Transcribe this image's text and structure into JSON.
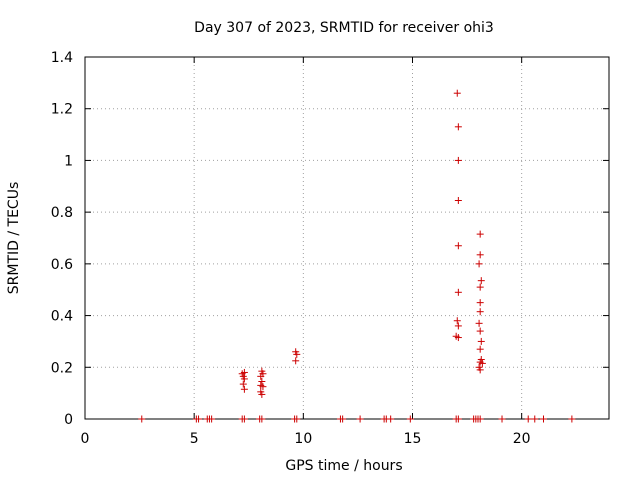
{
  "chart_data": {
    "type": "scatter",
    "title": "Day 307 of 2023, SRMTID for receiver ohi3",
    "xlabel": "GPS time / hours",
    "ylabel": "SRMTID / TECUs",
    "xlim": [
      0,
      24
    ],
    "ylim": [
      0,
      1.4
    ],
    "grid": true,
    "marker": "+",
    "color": "#cc0000",
    "x_ticks": [
      0,
      5,
      10,
      15,
      20
    ],
    "x_tick_labels": [
      "0",
      "5",
      "10",
      "15",
      "20"
    ],
    "y_ticks": [
      0,
      0.2,
      0.4,
      0.6,
      0.8,
      1.0,
      1.2,
      1.4
    ],
    "y_tick_labels": [
      "0",
      "0.2",
      "0.4",
      "0.6",
      "0.8",
      "1",
      "1.2",
      "1.4"
    ],
    "series": [
      {
        "name": "ohi3",
        "points": [
          [
            2.6,
            0
          ],
          [
            5.1,
            0
          ],
          [
            5.2,
            0
          ],
          [
            5.6,
            0
          ],
          [
            5.7,
            0
          ],
          [
            5.8,
            0
          ],
          [
            7.2,
            0
          ],
          [
            7.3,
            0
          ],
          [
            8.0,
            0
          ],
          [
            8.1,
            0
          ],
          [
            9.6,
            0
          ],
          [
            9.7,
            0
          ],
          [
            11.7,
            0
          ],
          [
            11.8,
            0
          ],
          [
            12.6,
            0
          ],
          [
            13.7,
            0
          ],
          [
            13.8,
            0
          ],
          [
            14.0,
            0
          ],
          [
            14.9,
            0
          ],
          [
            17.0,
            0
          ],
          [
            17.1,
            0
          ],
          [
            17.8,
            0
          ],
          [
            17.9,
            0
          ],
          [
            18.0,
            0
          ],
          [
            18.1,
            0
          ],
          [
            19.1,
            0
          ],
          [
            20.3,
            0
          ],
          [
            20.6,
            0
          ],
          [
            21.0,
            0
          ],
          [
            22.3,
            0
          ],
          [
            7.2,
            0.175
          ],
          [
            7.25,
            0.165
          ],
          [
            7.3,
            0.18
          ],
          [
            7.3,
            0.155
          ],
          [
            7.25,
            0.135
          ],
          [
            7.3,
            0.115
          ],
          [
            8.1,
            0.185
          ],
          [
            8.15,
            0.175
          ],
          [
            8.05,
            0.165
          ],
          [
            8.1,
            0.145
          ],
          [
            8.05,
            0.13
          ],
          [
            8.15,
            0.125
          ],
          [
            8.05,
            0.105
          ],
          [
            8.1,
            0.095
          ],
          [
            9.65,
            0.26
          ],
          [
            9.7,
            0.25
          ],
          [
            9.65,
            0.225
          ],
          [
            17.05,
            1.26
          ],
          [
            17.1,
            1.13
          ],
          [
            17.1,
            1.0
          ],
          [
            17.1,
            0.845
          ],
          [
            17.1,
            0.67
          ],
          [
            17.1,
            0.49
          ],
          [
            17.05,
            0.38
          ],
          [
            17.1,
            0.36
          ],
          [
            17.0,
            0.32
          ],
          [
            17.1,
            0.315
          ],
          [
            18.1,
            0.715
          ],
          [
            18.1,
            0.635
          ],
          [
            18.05,
            0.6
          ],
          [
            18.15,
            0.535
          ],
          [
            18.1,
            0.51
          ],
          [
            18.1,
            0.45
          ],
          [
            18.1,
            0.415
          ],
          [
            18.05,
            0.37
          ],
          [
            18.1,
            0.34
          ],
          [
            18.15,
            0.3
          ],
          [
            18.1,
            0.27
          ],
          [
            18.15,
            0.23
          ],
          [
            18.1,
            0.22
          ],
          [
            18.2,
            0.215
          ],
          [
            18.05,
            0.2
          ],
          [
            18.1,
            0.19
          ]
        ]
      }
    ]
  }
}
